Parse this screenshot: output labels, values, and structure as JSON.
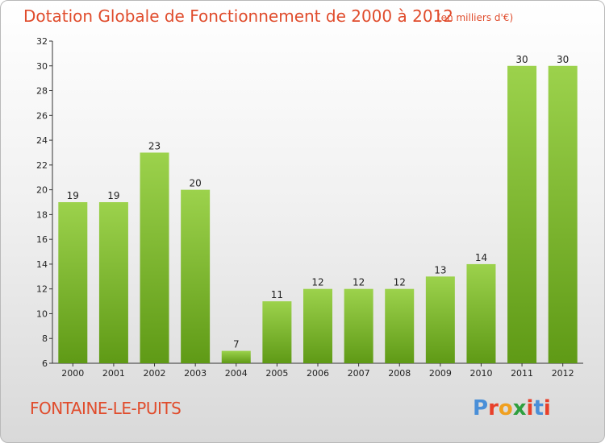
{
  "title": "Dotation Globale de Fonctionnement de 2000 à 2012",
  "subtitle": "(en milliers d'€)",
  "commune": "FONTAINE-LE-PUITS",
  "logo": {
    "text": "Proxiti",
    "colors": [
      "#4a8fd8",
      "#e8402a",
      "#f0a020",
      "#2e9f3e",
      "#e8402a",
      "#4a8fd8",
      "#e8402a"
    ]
  },
  "colors": {
    "bar_light": "#9cd24c",
    "bar_dark": "#5f9a16",
    "title": "#e04c2c"
  },
  "chart_data": {
    "type": "bar",
    "categories": [
      "2000",
      "2001",
      "2002",
      "2003",
      "2004",
      "2005",
      "2006",
      "2007",
      "2008",
      "2009",
      "2010",
      "2011",
      "2012"
    ],
    "values": [
      19,
      19,
      23,
      20,
      7,
      11,
      12,
      12,
      12,
      13,
      14,
      30,
      30
    ],
    "ylim": [
      6,
      32
    ],
    "yticks": [
      6,
      8,
      10,
      12,
      14,
      16,
      18,
      20,
      22,
      24,
      26,
      28,
      30,
      32
    ],
    "grid": false,
    "legend": "none"
  }
}
